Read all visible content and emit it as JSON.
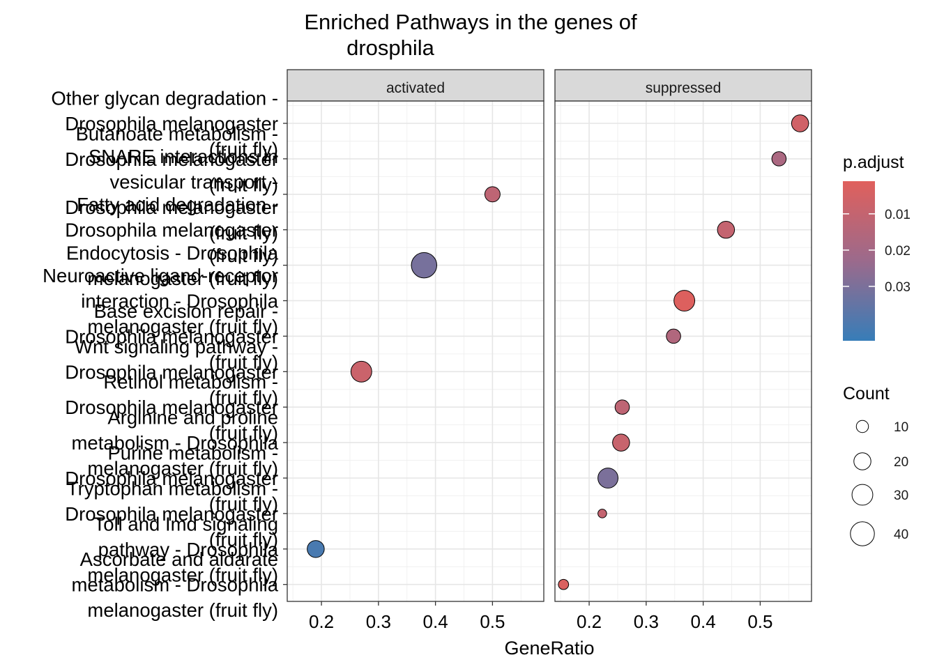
{
  "chart_data": {
    "type": "scatter",
    "title_lines": [
      "Enriched Pathways in the genes of",
      "drosphila"
    ],
    "xlabel": "GeneRatio",
    "ylabel": "",
    "xlim": [
      0.14,
      0.59
    ],
    "x_ticks": [
      0.2,
      0.3,
      0.4,
      0.5
    ],
    "x_tick_labels": [
      "0.2",
      "0.3",
      "0.4",
      "0.5"
    ],
    "grid": true,
    "facets": [
      "activated",
      "suppressed"
    ],
    "categories": [
      [
        "Other glycan degradation -",
        "Drosophila melanogaster",
        "(fruit fly)"
      ],
      [
        "Butanoate metabolism -",
        "Drosophila melanogaster",
        "(fruit fly)"
      ],
      [
        "SNARE interactions in",
        "vesicular transport -",
        "Drosophila melanogaster",
        "(fruit fly)"
      ],
      [
        "Fatty acid degradation -",
        "Drosophila melanogaster",
        "(fruit fly)"
      ],
      [
        "Endocytosis - Drosophila",
        "melanogaster (fruit fly)"
      ],
      [
        "Neuroactive ligand-receptor",
        "interaction - Drosophila",
        "melanogaster (fruit fly)"
      ],
      [
        "Base excision repair -",
        "Drosophila melanogaster",
        "(fruit fly)"
      ],
      [
        "Wnt signaling pathway -",
        "Drosophila melanogaster",
        "(fruit fly)"
      ],
      [
        "Retinol metabolism -",
        "Drosophila melanogaster",
        "(fruit fly)"
      ],
      [
        "Arginine and proline",
        "metabolism - Drosophila",
        "melanogaster (fruit fly)"
      ],
      [
        "Purine metabolism -",
        "Drosophila melanogaster",
        "(fruit fly)"
      ],
      [
        "Tryptophan metabolism -",
        "Drosophila melanogaster",
        "(fruit fly)"
      ],
      [
        "Toll and Imd signaling",
        "pathway - Drosophila",
        "melanogaster (fruit fly)"
      ],
      [
        "Ascorbate and aldarate",
        "metabolism - Drosophila",
        "melanogaster (fruit fly)"
      ]
    ],
    "points": [
      {
        "facet": "activated",
        "category": 2,
        "x": 0.5,
        "count": 16,
        "p_adjust": 0.012
      },
      {
        "facet": "activated",
        "category": 4,
        "x": 0.38,
        "count": 45,
        "p_adjust": 0.031
      },
      {
        "facet": "activated",
        "category": 7,
        "x": 0.27,
        "count": 30,
        "p_adjust": 0.008
      },
      {
        "facet": "activated",
        "category": 12,
        "x": 0.19,
        "count": 20,
        "p_adjust": 0.041
      },
      {
        "facet": "suppressed",
        "category": 0,
        "x": 0.57,
        "count": 20,
        "p_adjust": 0.006
      },
      {
        "facet": "suppressed",
        "category": 1,
        "x": 0.533,
        "count": 14,
        "p_adjust": 0.018
      },
      {
        "facet": "suppressed",
        "category": 3,
        "x": 0.44,
        "count": 20,
        "p_adjust": 0.01
      },
      {
        "facet": "suppressed",
        "category": 5,
        "x": 0.367,
        "count": 30,
        "p_adjust": 0.002
      },
      {
        "facet": "suppressed",
        "category": 6,
        "x": 0.348,
        "count": 14,
        "p_adjust": 0.016
      },
      {
        "facet": "suppressed",
        "category": 8,
        "x": 0.258,
        "count": 14,
        "p_adjust": 0.012
      },
      {
        "facet": "suppressed",
        "category": 9,
        "x": 0.256,
        "count": 20,
        "p_adjust": 0.009
      },
      {
        "facet": "suppressed",
        "category": 10,
        "x": 0.233,
        "count": 28,
        "p_adjust": 0.03
      },
      {
        "facet": "suppressed",
        "category": 11,
        "x": 0.223,
        "count": 5,
        "p_adjust": 0.01
      },
      {
        "facet": "suppressed",
        "category": 13,
        "x": 0.155,
        "count": 7,
        "p_adjust": 0.003
      }
    ],
    "color_legend": {
      "title": "p.adjust",
      "tick_values": [
        0.01,
        0.02,
        0.03
      ],
      "tick_labels": [
        "0.01",
        "0.02",
        "0.03"
      ],
      "range": [
        0.001,
        0.045
      ],
      "low_color": "#e0605c",
      "mid_color": "#9b6a8c",
      "high_color": "#377db8"
    },
    "size_legend": {
      "title": "Count",
      "values": [
        10,
        20,
        30,
        40
      ],
      "labels": [
        "10",
        "20",
        "30",
        "40"
      ]
    }
  }
}
